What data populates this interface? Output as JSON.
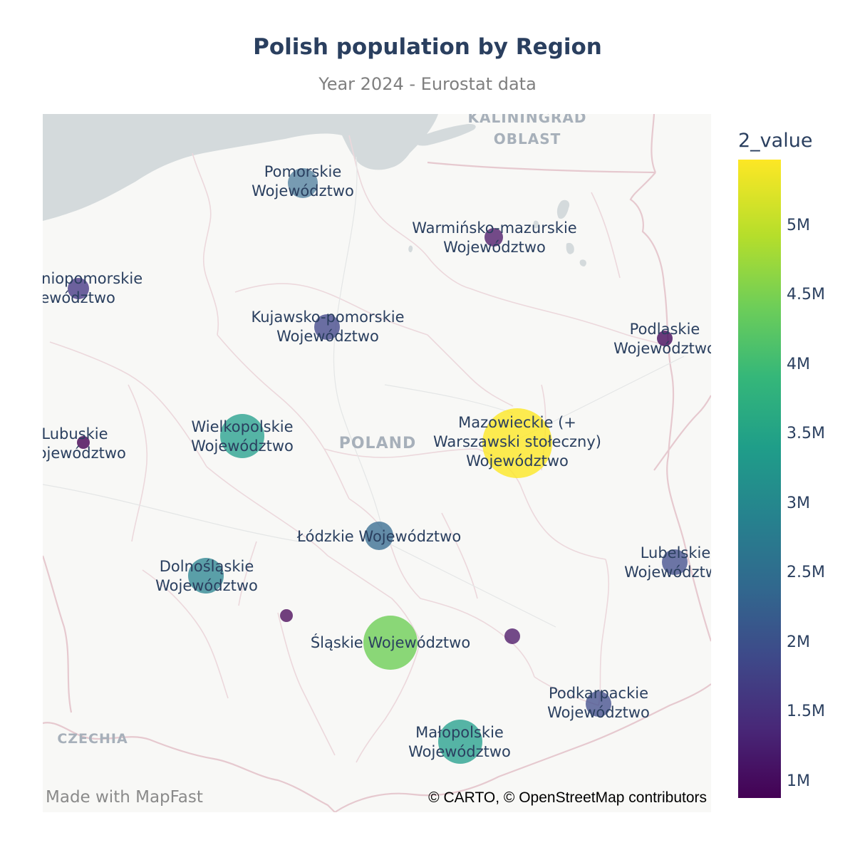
{
  "title": "Polish population by Region",
  "subtitle": "Year 2024 - Eurostat data",
  "map": {
    "country_labels": {
      "kaliningrad_line1": "KALININGRAD",
      "kaliningrad_line2": "OBLAST",
      "poland": "POLAND",
      "czechia": "CZECHIA"
    },
    "regions": [
      {
        "line1": "Pomorskie",
        "line2": "Województwo"
      },
      {
        "line1": "Warmińsko-mazurskie",
        "line2": "Województwo"
      },
      {
        "line1": "Zachodniopomorskie",
        "line2": "Województwo"
      },
      {
        "line1": "Kujawsko-pomorskie",
        "line2": "Województwo"
      },
      {
        "line1": "Podlaskie",
        "line2": "Województwo"
      },
      {
        "line1": "Lubuskie",
        "line2": "Województwo"
      },
      {
        "line1": "Wielkopolskie",
        "line2": "Województwo"
      },
      {
        "line1": "Mazowieckie (+",
        "line2": "Warszawski stołeczny)",
        "line3": "Województwo"
      },
      {
        "line1": "Łódzkie Województwo"
      },
      {
        "line1": "Lubelskie",
        "line2": "Województwo"
      },
      {
        "line1": "Dolnośląskie",
        "line2": "Województwo"
      },
      {
        "line1": "Śląskie Województwo"
      },
      {
        "line1": "Podkarpackie",
        "line2": "Województwo"
      },
      {
        "line1": "Małopolskie",
        "line2": "Województwo"
      }
    ],
    "watermark": "Made with MapFast",
    "attribution": "© CARTO, © OpenStreetMap contributors"
  },
  "colorbar": {
    "title": "2_value",
    "ticks": [
      "5M",
      "4.5M",
      "4M",
      "3.5M",
      "3M",
      "2.5M",
      "2M",
      "1.5M",
      "1M"
    ],
    "colorscale": [
      "#440154",
      "#482878",
      "#3e4989",
      "#31688e",
      "#26828e",
      "#1f9e89",
      "#35b779",
      "#6ece58",
      "#b5de2b",
      "#fde725"
    ]
  },
  "colors": {
    "water": "#d4dadc",
    "land": "#f8f8f6",
    "border": "#e6c9cf",
    "label": "#2a3f5f"
  }
}
